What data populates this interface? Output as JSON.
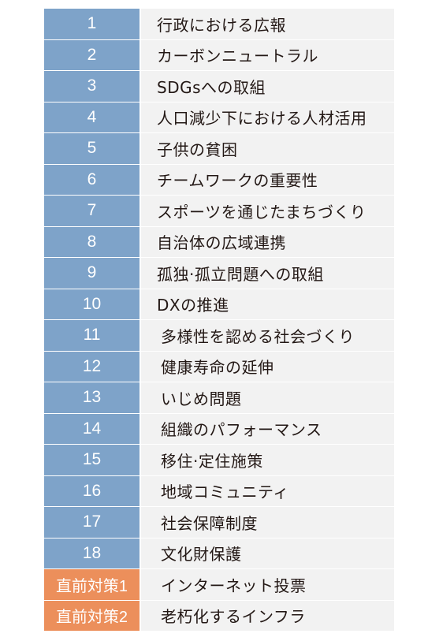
{
  "table": {
    "rows": [
      {
        "num": "1",
        "topic": "行政における広報",
        "kind": "blue"
      },
      {
        "num": "2",
        "topic": "カーボンニュートラル",
        "kind": "blue"
      },
      {
        "num": "3",
        "topic": "SDGsへの取組",
        "kind": "blue"
      },
      {
        "num": "4",
        "topic": "人口減少下における人材活用",
        "kind": "blue"
      },
      {
        "num": "5",
        "topic": "子供の貧困",
        "kind": "blue"
      },
      {
        "num": "6",
        "topic": "チームワークの重要性",
        "kind": "blue"
      },
      {
        "num": "7",
        "topic": "スポーツを通じたまちづくり",
        "kind": "blue"
      },
      {
        "num": "8",
        "topic": "自治体の広域連携",
        "kind": "blue"
      },
      {
        "num": "9",
        "topic": "孤独·孤立問題への取組",
        "kind": "blue"
      },
      {
        "num": "10",
        "topic": "DXの推進",
        "kind": "blue"
      },
      {
        "num": "11",
        "topic": "多様性を認める社会づくり",
        "kind": "blue"
      },
      {
        "num": "12",
        "topic": "健康寿命の延伸",
        "kind": "blue"
      },
      {
        "num": "13",
        "topic": "いじめ問題",
        "kind": "blue"
      },
      {
        "num": "14",
        "topic": "組織のパフォーマンス",
        "kind": "blue"
      },
      {
        "num": "15",
        "topic": "移住·定住施策",
        "kind": "blue"
      },
      {
        "num": "16",
        "topic": "地域コミュニティ",
        "kind": "blue"
      },
      {
        "num": "17",
        "topic": "社会保障制度",
        "kind": "blue"
      },
      {
        "num": "18",
        "topic": "文化財保護",
        "kind": "blue"
      },
      {
        "num": "直前対策1",
        "topic": "インターネット投票",
        "kind": "orange"
      },
      {
        "num": "直前対策2",
        "topic": "老朽化するインフラ",
        "kind": "orange"
      }
    ]
  },
  "colors": {
    "number_blue": "#7ea3c9",
    "number_orange": "#ec8f5b",
    "topic_background": "#f2f2f2",
    "text": "#231815"
  }
}
